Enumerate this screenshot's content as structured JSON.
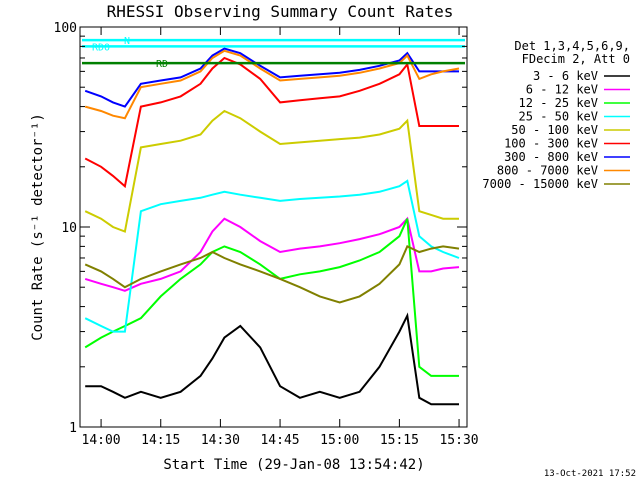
{
  "chart_data": {
    "type": "line",
    "title": "RHESSI Observing Summary Count Rates",
    "xlabel": "Start Time (29-Jan-08 13:54:42)",
    "ylabel": "Count Rate (s⁻¹ detector⁻¹)",
    "yscale": "log",
    "ylim": [
      1,
      100
    ],
    "xlim": [
      "13:54:42",
      "15:32:00"
    ],
    "x_ticks": [
      "14:00",
      "14:15",
      "14:30",
      "14:45",
      "15:00",
      "15:15",
      "15:30"
    ],
    "y_ticks": [
      "1",
      "10",
      "100"
    ],
    "x": [
      "13:56",
      "14:00",
      "14:03",
      "14:06",
      "14:10",
      "14:15",
      "14:20",
      "14:25",
      "14:28",
      "14:31",
      "14:35",
      "14:40",
      "14:45",
      "14:50",
      "14:55",
      "15:00",
      "15:05",
      "15:10",
      "15:15",
      "15:17",
      "15:20",
      "15:23",
      "15:26",
      "15:30"
    ],
    "series": [
      {
        "name": "3 - 6 keV",
        "color": "#000000",
        "values": [
          1.6,
          1.6,
          1.5,
          1.4,
          1.5,
          1.4,
          1.5,
          1.8,
          2.2,
          2.8,
          3.2,
          2.5,
          1.6,
          1.4,
          1.5,
          1.4,
          1.5,
          2.0,
          3.0,
          3.6,
          1.4,
          1.3,
          1.3,
          1.3
        ]
      },
      {
        "name": "6 - 12 keV",
        "color": "#ff00ff",
        "values": [
          5.5,
          5.2,
          5.0,
          4.8,
          5.2,
          5.5,
          6.0,
          7.5,
          9.5,
          11,
          10,
          8.5,
          7.5,
          7.8,
          8.0,
          8.3,
          8.7,
          9.2,
          10,
          11,
          6.0,
          6.0,
          6.2,
          6.3
        ]
      },
      {
        "name": "12 - 25 keV",
        "color": "#00ff00",
        "values": [
          2.5,
          2.8,
          3.0,
          3.2,
          3.5,
          4.5,
          5.5,
          6.5,
          7.5,
          8.0,
          7.5,
          6.5,
          5.5,
          5.8,
          6.0,
          6.3,
          6.8,
          7.5,
          9.0,
          11,
          2.0,
          1.8,
          1.8,
          1.8
        ]
      },
      {
        "name": "25 - 50 keV",
        "color": "#00ffff",
        "values": [
          3.5,
          3.2,
          3.0,
          3.0,
          12,
          13,
          13.5,
          14,
          14.5,
          15,
          14.5,
          14,
          13.5,
          13.8,
          14,
          14.2,
          14.5,
          15,
          16,
          17,
          9,
          8,
          7.5,
          7.0
        ]
      },
      {
        "name": "50 - 100 keV",
        "color": "#cccc00",
        "values": [
          12,
          11,
          10,
          9.5,
          25,
          26,
          27,
          29,
          34,
          38,
          35,
          30,
          26,
          26.5,
          27,
          27.5,
          28,
          29,
          31,
          34,
          12,
          11.5,
          11,
          11
        ]
      },
      {
        "name": "100 - 300 keV",
        "color": "#ff0000",
        "values": [
          22,
          20,
          18,
          16,
          40,
          42,
          45,
          52,
          62,
          70,
          65,
          55,
          42,
          43,
          44,
          45,
          48,
          52,
          58,
          65,
          32,
          32,
          32,
          32
        ]
      },
      {
        "name": "300 - 800 keV",
        "color": "#0000ff",
        "values": [
          48,
          45,
          42,
          40,
          52,
          54,
          56,
          62,
          72,
          78,
          74,
          64,
          56,
          57,
          58,
          59,
          61,
          64,
          68,
          74,
          60,
          60,
          60,
          60
        ]
      },
      {
        "name": "800 - 7000 keV",
        "color": "#ff8800",
        "values": [
          40,
          38,
          36,
          35,
          50,
          52,
          54,
          60,
          70,
          76,
          72,
          62,
          54,
          55,
          56,
          57,
          59,
          62,
          66,
          72,
          55,
          58,
          60,
          62
        ]
      },
      {
        "name": "7000 - 15000 keV",
        "color": "#808000",
        "values": [
          6.5,
          6.0,
          5.5,
          5.0,
          5.5,
          6.0,
          6.5,
          7.0,
          7.5,
          7.0,
          6.5,
          6.0,
          5.5,
          5.0,
          4.5,
          4.2,
          4.5,
          5.2,
          6.5,
          8.0,
          7.5,
          7.8,
          8.0,
          7.8
        ]
      }
    ],
    "flags": [
      {
        "name": "RD0",
        "color": "#00ffff",
        "level": 80
      },
      {
        "name": "N",
        "color": "#00ffff",
        "level": 86
      },
      {
        "name": "RD",
        "color": "#008000",
        "level": 66
      }
    ],
    "legend": {
      "placement": "right",
      "header": [
        "Det 1,3,4,5,6,9,",
        "FDecim 2, Att 0"
      ]
    },
    "grid": false,
    "stamp": "13-Oct-2021 17:52"
  }
}
